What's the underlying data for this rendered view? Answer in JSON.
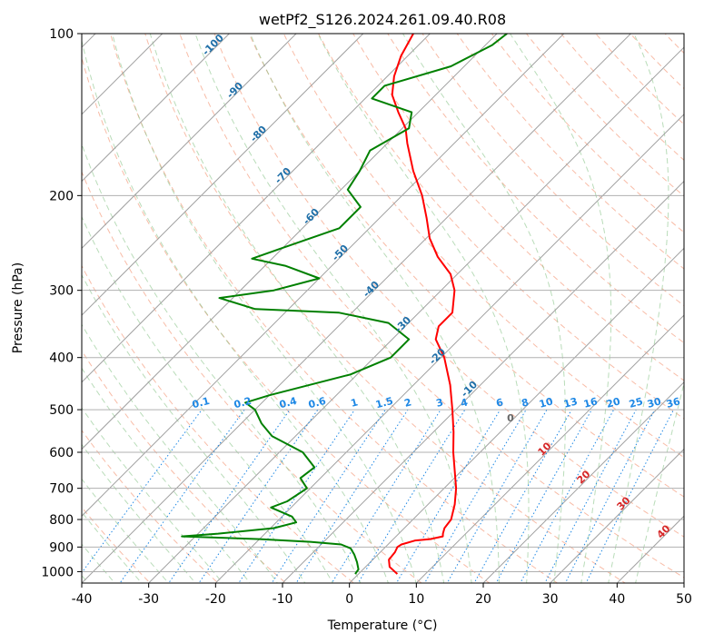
{
  "chart_data": {
    "type": "line",
    "title": "wetPf2_S126.2024.261.09.40.R08",
    "xlabel": "Temperature (°C)",
    "ylabel": "Pressure (hPa)",
    "xlim": [
      -40,
      50
    ],
    "ylim": [
      1050,
      100
    ],
    "y_scale": "log",
    "x_ticks": [
      -40,
      -30,
      -20,
      -10,
      0,
      10,
      20,
      30,
      40,
      50
    ],
    "y_ticks": [
      100,
      200,
      300,
      400,
      500,
      600,
      700,
      800,
      900,
      1000
    ],
    "grid": true,
    "colors": {
      "temperature": "#ff0000",
      "dewpoint": "#008000",
      "isotherm": "#a0a0a0",
      "dry_adiabat": "#f5a58a",
      "moist_adiabat": "#7fbf7f",
      "mixing_ratio": "#1e88e5",
      "theta_label": "#1f6fa8",
      "moist_label": "#d62728"
    },
    "series": [
      {
        "role": "temperature",
        "points": [
          {
            "p": 1010,
            "t": 5.8
          },
          {
            "p": 980,
            "t": 3.6
          },
          {
            "p": 950,
            "t": 2.4
          },
          {
            "p": 920,
            "t": 2.2
          },
          {
            "p": 900,
            "t": 1.8
          },
          {
            "p": 890,
            "t": 2.0
          },
          {
            "p": 875,
            "t": 3.5
          },
          {
            "p": 870,
            "t": 5.5
          },
          {
            "p": 860,
            "t": 7.0
          },
          {
            "p": 850,
            "t": 6.6
          },
          {
            "p": 830,
            "t": 6.0
          },
          {
            "p": 800,
            "t": 5.7
          },
          {
            "p": 750,
            "t": 4.0
          },
          {
            "p": 700,
            "t": 1.8
          },
          {
            "p": 650,
            "t": -1.0
          },
          {
            "p": 600,
            "t": -4.0
          },
          {
            "p": 550,
            "t": -7.0
          },
          {
            "p": 500,
            "t": -10.5
          },
          {
            "p": 450,
            "t": -14.5
          },
          {
            "p": 400,
            "t": -19.5
          },
          {
            "p": 370,
            "t": -23.5
          },
          {
            "p": 350,
            "t": -25.0
          },
          {
            "p": 330,
            "t": -25.0
          },
          {
            "p": 300,
            "t": -28.0
          },
          {
            "p": 280,
            "t": -31.0
          },
          {
            "p": 260,
            "t": -35.5
          },
          {
            "p": 240,
            "t": -39.5
          },
          {
            "p": 220,
            "t": -43.0
          },
          {
            "p": 200,
            "t": -47.0
          },
          {
            "p": 180,
            "t": -52.0
          },
          {
            "p": 160,
            "t": -57.0
          },
          {
            "p": 150,
            "t": -59.5
          },
          {
            "p": 140,
            "t": -63.0
          },
          {
            "p": 130,
            "t": -66.5
          },
          {
            "p": 120,
            "t": -69.0
          },
          {
            "p": 110,
            "t": -71.0
          },
          {
            "p": 100,
            "t": -72.5
          }
        ]
      },
      {
        "role": "dewpoint",
        "points": [
          {
            "p": 1010,
            "t": -0.5
          },
          {
            "p": 990,
            "t": -0.7
          },
          {
            "p": 960,
            "t": -2.0
          },
          {
            "p": 930,
            "t": -3.5
          },
          {
            "p": 905,
            "t": -5.0
          },
          {
            "p": 890,
            "t": -7.0
          },
          {
            "p": 880,
            "t": -12.0
          },
          {
            "p": 870,
            "t": -20.0
          },
          {
            "p": 860,
            "t": -32.0
          },
          {
            "p": 850,
            "t": -27.0
          },
          {
            "p": 830,
            "t": -19.5
          },
          {
            "p": 810,
            "t": -17.0
          },
          {
            "p": 790,
            "t": -18.5
          },
          {
            "p": 760,
            "t": -23.0
          },
          {
            "p": 740,
            "t": -21.5
          },
          {
            "p": 700,
            "t": -20.5
          },
          {
            "p": 670,
            "t": -23.0
          },
          {
            "p": 640,
            "t": -22.5
          },
          {
            "p": 600,
            "t": -26.5
          },
          {
            "p": 560,
            "t": -33.5
          },
          {
            "p": 530,
            "t": -37.0
          },
          {
            "p": 500,
            "t": -40.0
          },
          {
            "p": 485,
            "t": -42.5
          },
          {
            "p": 470,
            "t": -40.0
          },
          {
            "p": 430,
            "t": -31.0
          },
          {
            "p": 400,
            "t": -27.5
          },
          {
            "p": 370,
            "t": -27.5
          },
          {
            "p": 345,
            "t": -33.0
          },
          {
            "p": 330,
            "t": -42.0
          },
          {
            "p": 325,
            "t": -55.0
          },
          {
            "p": 310,
            "t": -62.0
          },
          {
            "p": 300,
            "t": -55.0
          },
          {
            "p": 285,
            "t": -50.0
          },
          {
            "p": 270,
            "t": -57.0
          },
          {
            "p": 262,
            "t": -63.0
          },
          {
            "p": 250,
            "t": -60.0
          },
          {
            "p": 230,
            "t": -54.5
          },
          {
            "p": 210,
            "t": -54.5
          },
          {
            "p": 195,
            "t": -59.0
          },
          {
            "p": 180,
            "t": -60.0
          },
          {
            "p": 165,
            "t": -61.5
          },
          {
            "p": 150,
            "t": -59.0
          },
          {
            "p": 140,
            "t": -61.0
          },
          {
            "p": 132,
            "t": -69.0
          },
          {
            "p": 125,
            "t": -69.0
          },
          {
            "p": 115,
            "t": -62.0
          },
          {
            "p": 105,
            "t": -59.0
          },
          {
            "p": 100,
            "t": -58.5
          }
        ]
      }
    ],
    "isotherm_labels": [
      {
        "text": "-100"
      },
      {
        "text": "-90"
      },
      {
        "text": "-80"
      },
      {
        "text": "-70"
      },
      {
        "text": "-60"
      },
      {
        "text": "-50"
      },
      {
        "text": "-40"
      },
      {
        "text": "-30"
      },
      {
        "text": "-20"
      },
      {
        "text": "-10"
      },
      {
        "text": "0"
      }
    ],
    "mixing_ratio_labels": [
      "0.1",
      "0.2",
      "0.4",
      "0.6",
      "1",
      "1.5",
      "2",
      "3",
      "4",
      "6",
      "8",
      "10",
      "13",
      "16",
      "20",
      "25",
      "30",
      "36"
    ],
    "moist_adiabat_labels": [
      "10",
      "20",
      "30",
      "40"
    ]
  }
}
